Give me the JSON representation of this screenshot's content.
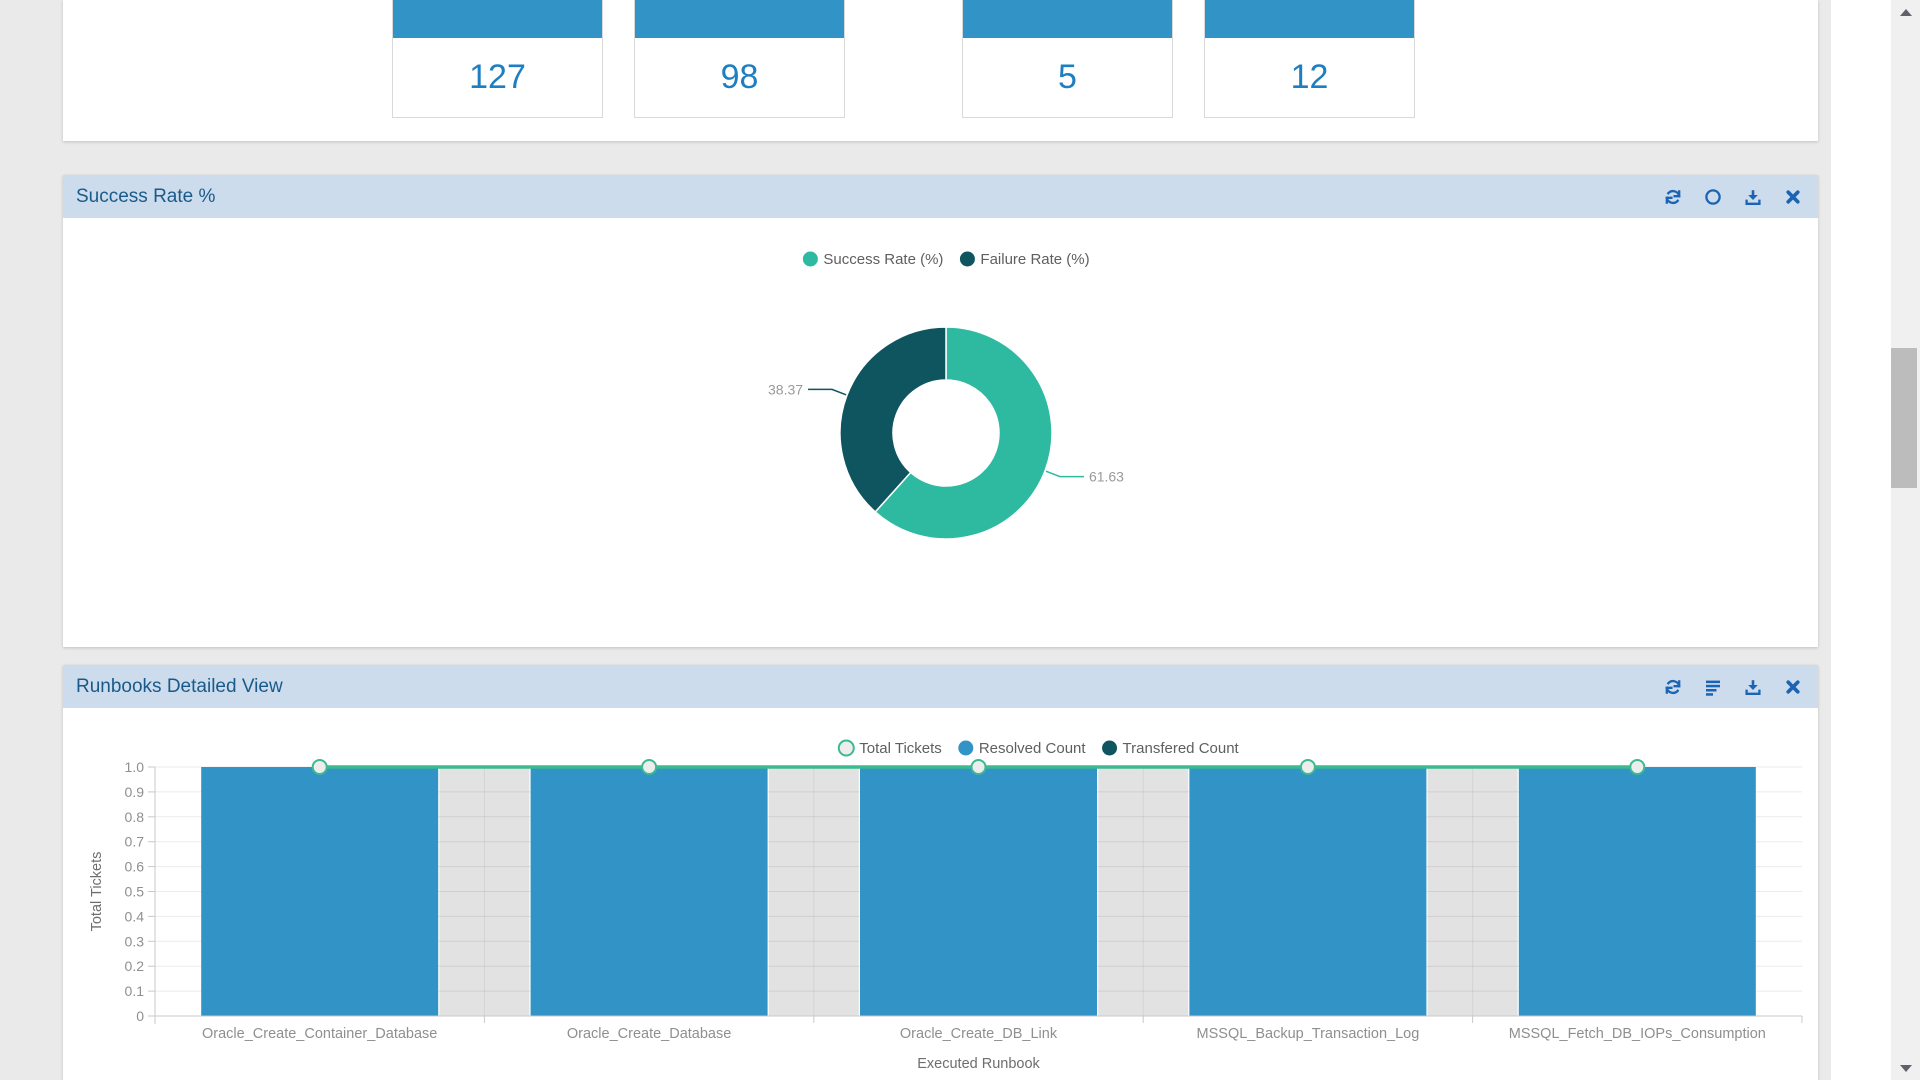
{
  "colors": {
    "page_background": "#eaeaea",
    "panel_header": "#ccdcec",
    "panel_title": "#1a5a8a",
    "header_icon": "#1b64b4",
    "card_header": "#3193c6",
    "card_value": "#1e7ec2",
    "bar_blue": "#3193c6",
    "donut_success": "#2ebaa0",
    "donut_failure": "#0f5560",
    "line_teal": "#3cba92"
  },
  "cards": {
    "items": [
      {
        "value": "127"
      },
      {
        "value": "98"
      },
      {
        "value": "5"
      },
      {
        "value": "12"
      }
    ]
  },
  "panels": {
    "success": {
      "title": "Success Rate %"
    },
    "runbooks": {
      "title": "Runbooks Detailed View"
    }
  },
  "chart_data": [
    {
      "type": "pie",
      "shape": "donut",
      "panel": "success",
      "legend_position": "top",
      "legend": [
        "Success Rate (%)",
        "Failure Rate (%)"
      ],
      "series": [
        {
          "name": "Success Rate (%)",
          "value": 61.63,
          "label": "61.63",
          "color": "#2ebaa0"
        },
        {
          "name": "Failure Rate (%)",
          "value": 38.37,
          "label": "38.37",
          "color": "#0f5560"
        }
      ]
    },
    {
      "type": "bar",
      "panel": "runbooks",
      "legend_position": "top",
      "categories": [
        "Oracle_Create_Container_Database",
        "Oracle_Create_Database",
        "Oracle_Create_DB_Link",
        "MSSQL_Backup_Transaction_Log",
        "MSSQL_Fetch_DB_IOPs_Consumption"
      ],
      "series": [
        {
          "name": "Total Tickets",
          "chart": "line",
          "color": "#3cba92",
          "marker_fill": "#ededed",
          "values": [
            1,
            1,
            1,
            1,
            1
          ]
        },
        {
          "name": "Resolved Count",
          "chart": "bar",
          "color": "#3193c6",
          "values": [
            1,
            1,
            1,
            1,
            1
          ]
        },
        {
          "name": "Transfered Count",
          "chart": "bar",
          "color": "#0f5560",
          "values": [
            0,
            0,
            0,
            0,
            0
          ]
        }
      ],
      "xlabel": "Executed Runbook",
      "ylabel": "Total Tickets",
      "ylim": [
        0,
        1.0
      ],
      "yticks": [
        "0",
        "0.1",
        "0.2",
        "0.3",
        "0.4",
        "0.5",
        "0.6",
        "0.7",
        "0.8",
        "0.9",
        "1.0"
      ],
      "grid": true
    }
  ]
}
